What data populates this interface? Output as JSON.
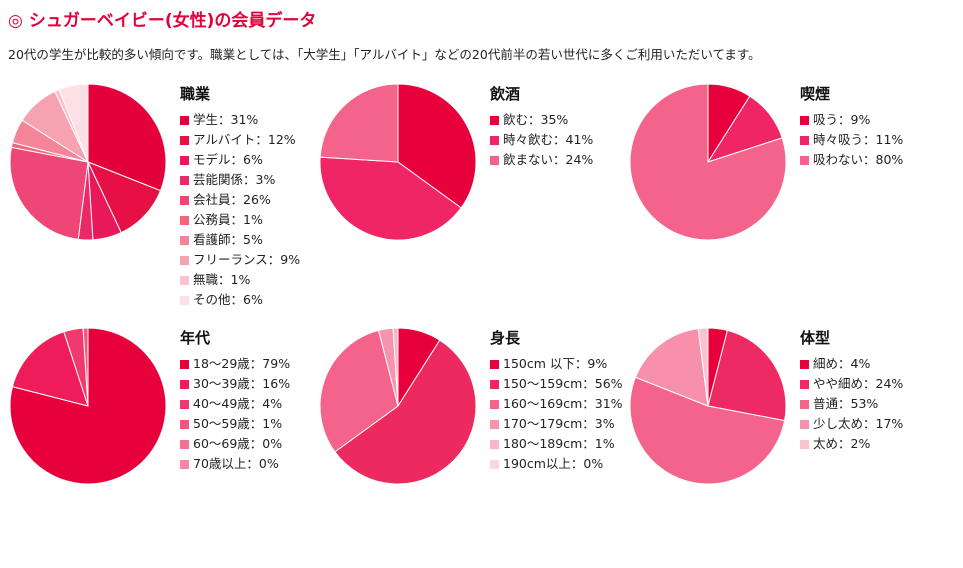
{
  "page": {
    "title_mark": "◎",
    "title": "シュガーベイビー(女性)の会員データ",
    "subtitle": "20代の学生が比較的多い傾向です。職業としては、「大学生」「アルバイト」などの20代前半の若い世代に多くご利用いただいてます。"
  },
  "chart_data": [
    {
      "type": "pie",
      "title": "職業",
      "categories": [
        "学生",
        "アルバイト",
        "モデル",
        "芸能関係",
        "会社員",
        "公務員",
        "看護師",
        "フリーランス",
        "無職",
        "その他"
      ],
      "values": [
        31,
        12,
        6,
        3,
        26,
        1,
        5,
        9,
        1,
        6
      ],
      "labels": [
        "学生：31%",
        "アルバイト：12%",
        "モデル：6%",
        "芸能関係：3%",
        "会社員：26%",
        "公務員：1%",
        "看護師：5%",
        "フリーランス：9%",
        "無職：1%",
        "その他：6%"
      ],
      "colors": [
        "#e4003a",
        "#e60f46",
        "#e8185a",
        "#ea2a66",
        "#ee4675",
        "#f1667f",
        "#f48598",
        "#f7a2b1",
        "#fac3cd",
        "#fde0e6"
      ]
    },
    {
      "type": "pie",
      "title": "飲酒",
      "categories": [
        "飲む",
        "時々飲む",
        "飲まない"
      ],
      "values": [
        35,
        41,
        24
      ],
      "labels": [
        "飲む：35%",
        "時々飲む：41%",
        "飲まない：24%"
      ],
      "colors": [
        "#e8003d",
        "#f02565",
        "#f4638a"
      ]
    },
    {
      "type": "pie",
      "title": "喫煙",
      "categories": [
        "吸う",
        "時々吸う",
        "吸わない"
      ],
      "values": [
        9,
        11,
        80
      ],
      "labels": [
        "吸う：9%",
        "時々吸う：11%",
        "吸わない：80%"
      ],
      "colors": [
        "#e8003d",
        "#f02565",
        "#f4638a"
      ]
    },
    {
      "type": "pie",
      "title": "年代",
      "categories": [
        "18〜29歳",
        "30〜39歳",
        "40〜49歳",
        "50〜59歳",
        "60〜69歳",
        "70歳以上"
      ],
      "values": [
        79,
        16,
        4,
        1,
        0,
        0
      ],
      "labels": [
        "18〜29歳：79%",
        "30〜39歳：16%",
        "40〜49歳：4%",
        "50〜59歳：1%",
        "60〜69歳：0%",
        "70歳以上：0%"
      ],
      "colors": [
        "#e8003d",
        "#ee1c58",
        "#f03a6d",
        "#f3577f",
        "#f56f92",
        "#f888a5"
      ]
    },
    {
      "type": "pie",
      "title": "身長",
      "categories": [
        "150cm 以下",
        "150〜159cm",
        "160〜169cm",
        "170〜179cm",
        "180〜189cm",
        "190cm以上"
      ],
      "values": [
        9,
        56,
        31,
        3,
        1,
        0
      ],
      "labels": [
        "150cm 以下：9%",
        "150〜159cm：56%",
        "160〜169cm：31%",
        "170〜179cm：3%",
        "180〜189cm：1%",
        "190cm以上：0%"
      ],
      "colors": [
        "#e8003d",
        "#ec2a5f",
        "#f4638a",
        "#f794ad",
        "#fab6c8",
        "#fdd6e0"
      ]
    },
    {
      "type": "pie",
      "title": "体型",
      "categories": [
        "細め",
        "やや細め",
        "普通",
        "少し太め",
        "太め"
      ],
      "values": [
        4,
        24,
        53,
        17,
        2
      ],
      "labels": [
        "細め：4%",
        "やや細め：24%",
        "普通：53%",
        "少し太め：17%",
        "太め：2%"
      ],
      "colors": [
        "#e8003d",
        "#ee2a63",
        "#f4638a",
        "#f791ab",
        "#fbc2d0"
      ]
    }
  ]
}
